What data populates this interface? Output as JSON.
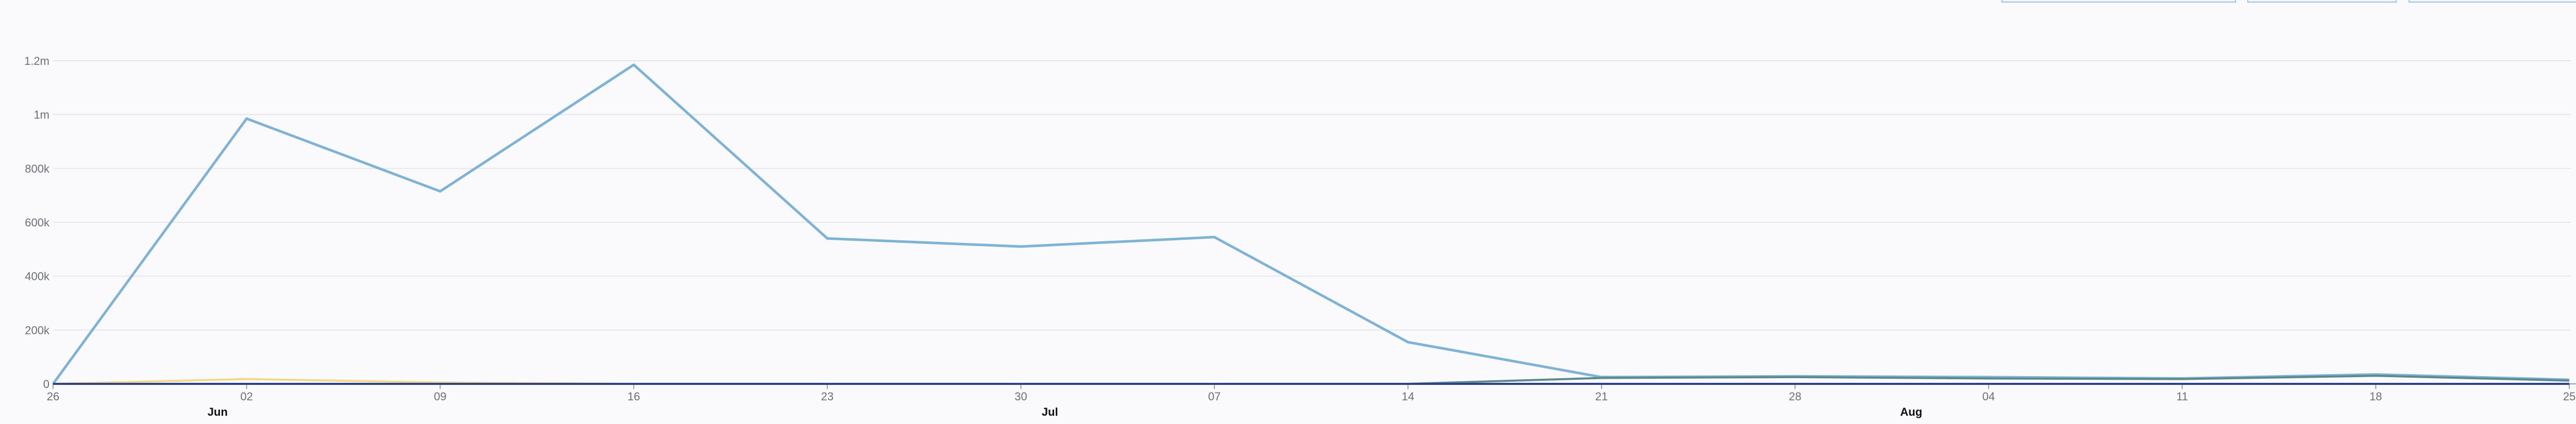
{
  "chart_data": {
    "type": "line",
    "x": [
      "26",
      "02",
      "09",
      "16",
      "23",
      "30",
      "07",
      "14",
      "21",
      "28",
      "04",
      "11",
      "18",
      "25"
    ],
    "month_labels": [
      {
        "label": "Jun",
        "x_value": 0.85
      },
      {
        "label": "Jul",
        "x_value": 5.15
      },
      {
        "label": "Aug",
        "x_value": 9.6
      }
    ],
    "y_ticks": [
      {
        "value": 0,
        "label": "0"
      },
      {
        "value": 200000,
        "label": "200k"
      },
      {
        "value": 400000,
        "label": "400k"
      },
      {
        "value": 600000,
        "label": "600k"
      },
      {
        "value": 800000,
        "label": "800k"
      },
      {
        "value": 1000000,
        "label": "1m"
      },
      {
        "value": 1200000,
        "label": "1.2m"
      }
    ],
    "ylim": [
      0,
      1200000
    ],
    "grid": true,
    "series": [
      {
        "color": "#7fb3d6",
        "values": [
          0,
          985000,
          715000,
          1185000,
          540000,
          510000,
          545000,
          155000,
          25000,
          28000,
          25000,
          20000,
          35000,
          15000
        ]
      },
      {
        "color": "#5b8a8a",
        "values": [
          0,
          0,
          0,
          0,
          0,
          0,
          0,
          0,
          22000,
          25000,
          20000,
          18000,
          30000,
          12000
        ]
      },
      {
        "color": "#f0d98a",
        "values": [
          0,
          18000,
          5000,
          0,
          0,
          0,
          0,
          0,
          0,
          0,
          0,
          0,
          0,
          0
        ]
      },
      {
        "color": "#2f3f8f",
        "values": [
          0,
          0,
          0,
          0,
          0,
          0,
          0,
          0,
          0,
          0,
          0,
          0,
          0,
          0
        ]
      }
    ]
  }
}
